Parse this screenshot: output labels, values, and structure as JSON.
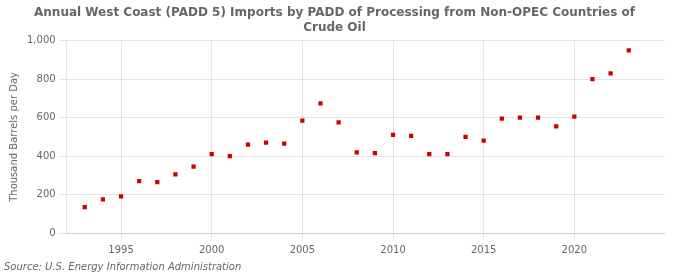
{
  "chart_data": {
    "type": "scatter",
    "title": "Annual West Coast (PADD 5) Imports by PADD of Processing from Non-OPEC Countries of\nCrude Oil",
    "ylabel": "Thousand Barrels per Day",
    "annotations": [
      "Source: U.S. Energy Information Administration"
    ],
    "x": [
      1993,
      1994,
      1995,
      1996,
      1997,
      1998,
      1999,
      2000,
      2001,
      2002,
      2003,
      2004,
      2005,
      2006,
      2007,
      2008,
      2009,
      2010,
      2011,
      2012,
      2013,
      2014,
      2015,
      2016,
      2017,
      2018,
      2019,
      2020,
      2021,
      2022,
      2023
    ],
    "values": [
      135,
      175,
      190,
      270,
      265,
      305,
      345,
      410,
      400,
      460,
      470,
      465,
      585,
      675,
      575,
      420,
      415,
      510,
      505,
      410,
      410,
      500,
      480,
      595,
      600,
      600,
      555,
      605,
      800,
      830,
      950
    ],
    "color": "#cc0000",
    "marker": "square",
    "xlim": [
      1992,
      2025
    ],
    "xticks": [
      1995,
      2000,
      2005,
      2010,
      2015,
      2020
    ],
    "ylim": [
      0,
      1000
    ],
    "yticks": [
      0,
      200,
      400,
      600,
      800,
      {
        "value": 1000,
        "label": "1,000"
      }
    ],
    "grid": true
  }
}
